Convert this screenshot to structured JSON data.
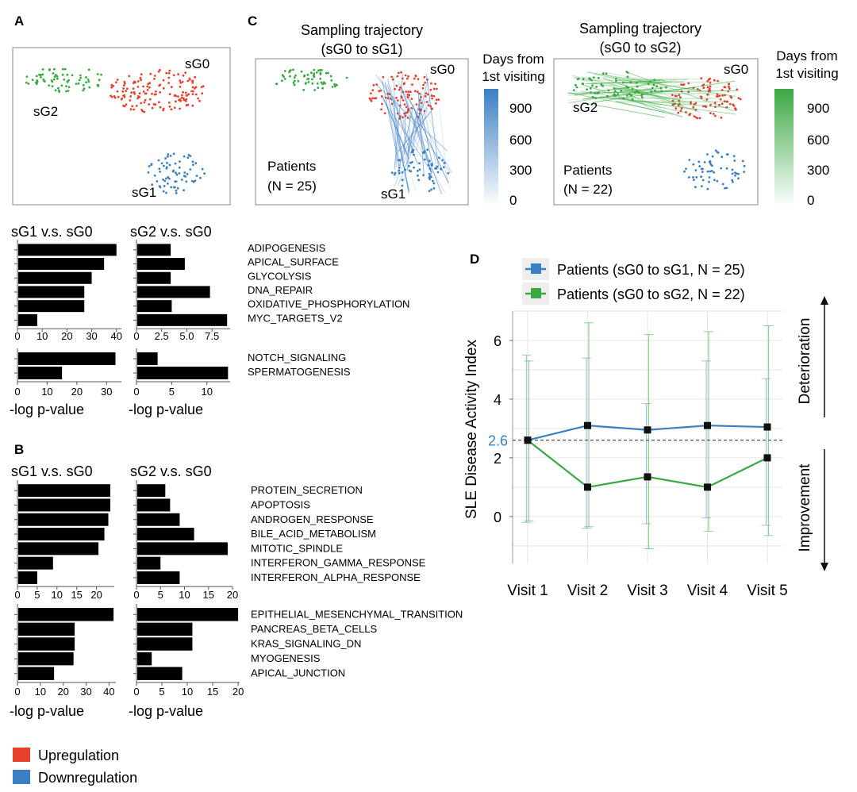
{
  "colors": {
    "up": "#e8412e",
    "down": "#3b7fc2",
    "sg0": "#e8412e",
    "sg1": "#3b7fc2",
    "sg2": "#3aa842",
    "axis": "#555555",
    "grid": "#e6e6e6",
    "ref_label": "#3b7fc2"
  },
  "panels": {
    "A": "A",
    "B": "B",
    "C": "C",
    "D": "D"
  },
  "legend": {
    "up": "Upregulation",
    "down": "Downregulation"
  },
  "umap_labels": {
    "sg0": "sG0",
    "sg1": "sG1",
    "sg2": "sG2"
  },
  "panel_c": {
    "left": {
      "title1": "Sampling trajectory",
      "title2": "(sG0 to sG1)",
      "patients": "Patients",
      "n": "(N = 25)"
    },
    "right": {
      "title1": "Sampling trajectory",
      "title2": "(sG0 to sG2)",
      "patients": "Patients",
      "n": "(N = 22)"
    },
    "colorbar": {
      "title1": "Days from",
      "title2": "1st visiting",
      "ticks": [
        "900",
        "600",
        "300",
        "0"
      ]
    }
  },
  "chart_data": [
    {
      "id": "A-up",
      "type": "bar",
      "orientation": "horizontal",
      "categories": [
        "ADIPOGENESIS",
        "APICAL_SURFACE",
        "GLYCOLYSIS",
        "DNA_REPAIR",
        "OXIDATIVE_PHOSPHORYLATION",
        "MYC_TARGETS_V2"
      ],
      "series": [
        {
          "name": "sG1 v.s. sG0",
          "values": [
            40,
            35,
            30,
            27,
            27,
            8
          ],
          "xlim": [
            0,
            42
          ],
          "ticks": [
            0,
            10,
            20,
            30,
            40
          ]
        },
        {
          "name": "sG2 v.s. sG0",
          "values": [
            3.4,
            4.8,
            3.4,
            7.3,
            3.5,
            9.0
          ],
          "xlim": [
            0,
            9.3
          ],
          "ticks": [
            "0",
            "2.5",
            "5.0",
            "7.5"
          ]
        }
      ],
      "direction": "up"
    },
    {
      "id": "A-down",
      "type": "bar",
      "orientation": "horizontal",
      "categories": [
        "NOTCH_SIGNALING",
        "SPERMATOGENESIS"
      ],
      "series": [
        {
          "name": "sG1 v.s. sG0",
          "values": [
            33,
            15
          ],
          "xlim": [
            0,
            35
          ],
          "ticks": [
            0,
            10,
            20,
            30
          ]
        },
        {
          "name": "sG2 v.s. sG0",
          "values": [
            3,
            13
          ],
          "xlim": [
            0,
            13.3
          ],
          "ticks": [
            0,
            5,
            10
          ]
        }
      ],
      "direction": "down",
      "xlabel": "-log p-value"
    },
    {
      "id": "B-top",
      "type": "bar",
      "orientation": "horizontal",
      "categories": [
        "PROTEIN_SECRETION",
        "APOPTOSIS",
        "ANDROGEN_RESPONSE",
        "BILE_ACID_METABOLISM",
        "MITOTIC_SPINDLE",
        "INTERFERON_GAMMA_RESPONSE",
        "INTERFERON_ALPHA_RESPONSE"
      ],
      "series": [
        {
          "name": "sG1 v.s. sG0",
          "values": [
            23.5,
            23.5,
            23,
            22,
            20.5,
            9,
            5
          ],
          "xlim": [
            0,
            24.5
          ],
          "ticks": [
            0,
            5,
            10,
            15,
            20
          ],
          "direction": "up"
        },
        {
          "name": "sG2 v.s. sG0",
          "values": [
            6,
            7,
            9,
            12,
            19,
            5,
            9
          ],
          "xlim": [
            0,
            20
          ],
          "ticks": [
            0,
            5,
            10,
            15,
            20
          ],
          "direction": "down"
        }
      ]
    },
    {
      "id": "B-bottom",
      "type": "bar",
      "orientation": "horizontal",
      "categories": [
        "EPITHELIAL_MESENCHYMAL_TRANSITION",
        "PANCREAS_BETA_CELLS",
        "KRAS_SIGNALING_DN",
        "MYOGENESIS",
        "APICAL_JUNCTION"
      ],
      "series": [
        {
          "name": "sG1 v.s. sG0",
          "values": [
            42,
            25,
            25,
            24.5,
            16
          ],
          "xlim": [
            0,
            43
          ],
          "ticks": [
            0,
            10,
            20,
            30,
            40
          ],
          "direction": "down"
        },
        {
          "name": "sG2 v.s. sG0",
          "values": [
            20,
            11,
            11,
            3,
            9
          ],
          "xlim": [
            0,
            20.3
          ],
          "ticks": [
            0,
            5,
            10,
            15,
            20
          ],
          "direction": "up"
        }
      ],
      "xlabel": "-log p-value"
    },
    {
      "id": "D",
      "type": "line",
      "title": "",
      "ylabel": "SLE Disease Activity Index",
      "xlabel": "",
      "categories": [
        "Visit 1",
        "Visit 2",
        "Visit 3",
        "Visit 4",
        "Visit 5"
      ],
      "ylim": [
        -1.6,
        7
      ],
      "yticks": [
        0,
        2,
        4,
        6
      ],
      "reference": {
        "value": 2.6,
        "label": "2.6"
      },
      "series": [
        {
          "name": "Patients (sG0 to sG1, N = 25)",
          "color": "#3b7fc2",
          "values": [
            2.6,
            3.1,
            2.95,
            3.1,
            3.05
          ],
          "err_low": [
            -0.2,
            -0.4,
            -0.25,
            -0.05,
            -0.3
          ],
          "err_high": [
            5.5,
            5.4,
            3.85,
            5.3,
            4.7
          ]
        },
        {
          "name": "Patients (sG0 to sG2, N = 22)",
          "color": "#3aa842",
          "values": [
            2.6,
            1.0,
            1.35,
            1.0,
            2.0
          ],
          "err_low": [
            -0.15,
            -0.35,
            -1.1,
            -0.5,
            -0.65
          ],
          "err_high": [
            5.3,
            6.6,
            6.2,
            6.3,
            6.5
          ]
        }
      ],
      "annotations": {
        "up": "Deterioration",
        "down": "Improvement"
      }
    }
  ]
}
